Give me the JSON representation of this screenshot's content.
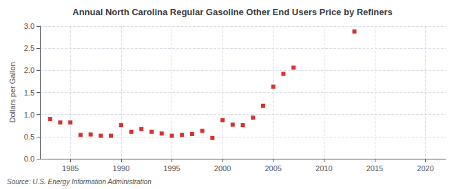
{
  "chart_data": {
    "type": "scatter",
    "title": "Annual North Carolina Regular Gasoline Other End Users Price by Refiners",
    "ylabel": "Dollars per Gallon",
    "annotation": "Source: U.S. Energy Information Administration",
    "color": "#cc0000",
    "marker": "square",
    "x": [
      1983,
      1984,
      1985,
      1986,
      1987,
      1988,
      1989,
      1990,
      1991,
      1992,
      1993,
      1994,
      1995,
      1996,
      1997,
      1998,
      1999,
      2000,
      2001,
      2002,
      2003,
      2004,
      2005,
      2006,
      2007,
      2013
    ],
    "values": [
      0.9,
      0.82,
      0.82,
      0.54,
      0.55,
      0.52,
      0.52,
      0.76,
      0.61,
      0.67,
      0.61,
      0.57,
      0.52,
      0.54,
      0.56,
      0.63,
      0.47,
      0.87,
      0.77,
      0.76,
      0.93,
      1.2,
      1.63,
      1.92,
      2.06,
      2.88
    ],
    "xlim": [
      1982,
      2022
    ],
    "xticks": [
      1985,
      1990,
      1995,
      2000,
      2005,
      2010,
      2015,
      2020
    ],
    "ylim": [
      0.0,
      3.0
    ],
    "yticks": [
      {
        "value": 0,
        "label": "0.0"
      },
      0.5,
      {
        "value": 1,
        "label": "1.0"
      },
      1.5,
      {
        "value": 2,
        "label": "2.0"
      },
      2.5,
      {
        "value": 3,
        "label": "3.0"
      }
    ],
    "grid": true
  }
}
